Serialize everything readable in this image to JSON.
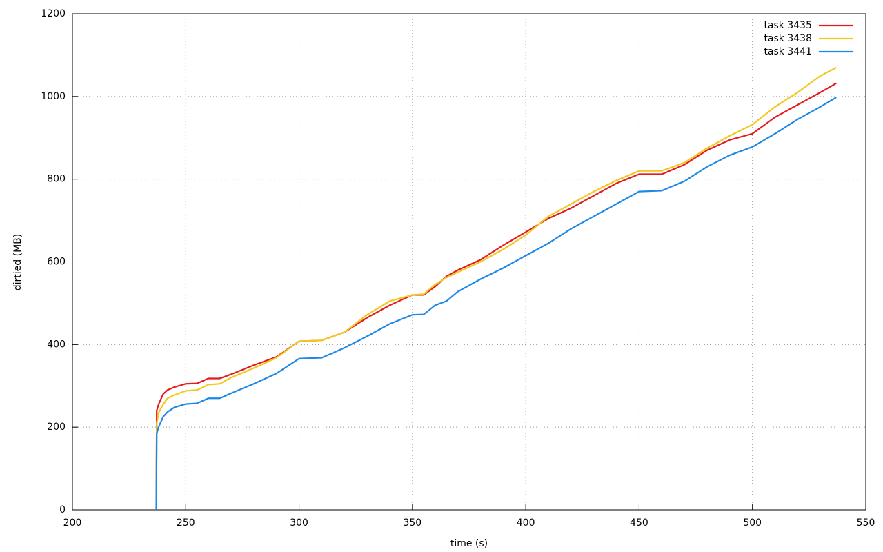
{
  "chart_data": {
    "type": "line",
    "xlabel": "time (s)",
    "ylabel": "dirtied (MB)",
    "x": [
      237,
      237.2,
      238,
      240,
      242,
      245,
      250,
      255,
      260,
      265,
      270,
      280,
      290,
      300,
      310,
      320,
      330,
      340,
      350,
      355,
      360,
      365,
      370,
      380,
      390,
      400,
      410,
      420,
      430,
      440,
      450,
      460,
      470,
      480,
      490,
      500,
      510,
      520,
      530,
      537
    ],
    "series": [
      {
        "name": "task 3435",
        "color": "#e41a1c",
        "values": [
          0,
          240,
          255,
          280,
          290,
          297,
          305,
          306,
          318,
          318,
          328,
          350,
          370,
          408,
          410,
          430,
          465,
          495,
          520,
          520,
          540,
          565,
          580,
          605,
          640,
          672,
          705,
          730,
          760,
          790,
          812,
          812,
          835,
          870,
          895,
          910,
          950,
          980,
          1010,
          1032
        ]
      },
      {
        "name": "task 3438",
        "color": "#f2c81c",
        "values": [
          0,
          210,
          235,
          255,
          270,
          278,
          288,
          290,
          303,
          305,
          320,
          343,
          368,
          408,
          410,
          430,
          472,
          505,
          520,
          522,
          545,
          562,
          575,
          600,
          630,
          665,
          710,
          740,
          770,
          797,
          820,
          820,
          840,
          875,
          905,
          932,
          975,
          1010,
          1050,
          1070
        ]
      },
      {
        "name": "task 3441",
        "color": "#1e88e5",
        "values": [
          0,
          185,
          200,
          225,
          237,
          248,
          256,
          258,
          270,
          270,
          282,
          305,
          330,
          366,
          368,
          392,
          420,
          450,
          472,
          473,
          495,
          505,
          528,
          558,
          585,
          615,
          645,
          680,
          710,
          740,
          770,
          772,
          795,
          830,
          858,
          878,
          910,
          945,
          975,
          998
        ]
      }
    ],
    "xlim": [
      200,
      550
    ],
    "xticks": [
      200,
      250,
      300,
      350,
      400,
      450,
      500,
      550
    ],
    "ylim": [
      0,
      1200
    ],
    "yticks": [
      0,
      200,
      400,
      600,
      800,
      1000,
      1200
    ],
    "grid": true,
    "legend": "top-right"
  }
}
